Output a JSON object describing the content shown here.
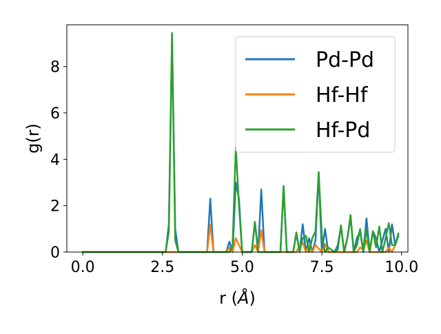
{
  "chart_data": {
    "type": "line",
    "xlabel_prefix": "r (",
    "xlabel_unit": "Å",
    "xlabel_suffix": ")",
    "ylabel": "g(r)",
    "xlim": [
      -0.5,
      10.2
    ],
    "ylim": [
      0,
      9.8
    ],
    "x_ticks": [
      0.0,
      2.5,
      5.0,
      7.5,
      10.0
    ],
    "x_tick_labels": [
      "0.0",
      "2.5",
      "5.0",
      "7.5",
      "10.0"
    ],
    "y_ticks": [
      0,
      2,
      4,
      6,
      8
    ],
    "y_tick_labels": [
      "0",
      "2",
      "4",
      "6",
      "8"
    ],
    "grid": false,
    "legend_position": "top-right",
    "series": [
      {
        "name": "Pd-Pd",
        "color": "#1f77b4",
        "x": [
          0.0,
          2.6,
          2.7,
          2.8,
          2.9,
          3.0,
          3.9,
          4.0,
          4.1,
          4.5,
          4.6,
          4.7,
          4.8,
          4.9,
          5.0,
          5.3,
          5.4,
          5.5,
          5.6,
          5.7,
          6.2,
          6.3,
          6.4,
          6.6,
          6.7,
          6.8,
          6.9,
          7.0,
          7.1,
          7.2,
          7.3,
          7.4,
          7.5,
          7.6,
          7.7,
          7.9,
          8.0,
          8.1,
          8.2,
          8.3,
          8.4,
          8.5,
          8.6,
          8.7,
          8.8,
          8.9,
          9.0,
          9.1,
          9.2,
          9.3,
          9.4,
          9.5,
          9.6,
          9.7,
          9.8,
          9.9
        ],
        "y": [
          0,
          0,
          1.2,
          9.2,
          1.0,
          0,
          0,
          2.3,
          0,
          0,
          0.45,
          0,
          3.0,
          2.3,
          0,
          0,
          1.3,
          0,
          2.7,
          0,
          0,
          2.8,
          0,
          0,
          0.8,
          0,
          1.2,
          0,
          0.6,
          0,
          0.5,
          3.4,
          0,
          1.0,
          0,
          0,
          0.3,
          1.1,
          0,
          0.6,
          1.5,
          0,
          0.6,
          0.9,
          0,
          1.45,
          0,
          0.9,
          0.6,
          0,
          0.5,
          1.0,
          0,
          1.2,
          0.3,
          0.7
        ]
      },
      {
        "name": "Hf-Hf",
        "color": "#ff7f0e",
        "x": [
          0.0,
          3.9,
          4.0,
          4.1,
          4.5,
          4.6,
          4.7,
          4.8,
          4.9,
          5.0,
          5.3,
          5.4,
          5.5,
          5.6,
          5.7,
          6.7,
          6.8,
          6.9,
          7.0,
          7.1,
          7.2,
          7.3,
          7.4,
          7.5,
          7.6,
          7.7,
          8.6,
          8.7,
          8.8,
          8.9,
          9.0,
          9.5,
          9.6,
          9.7,
          9.8
        ],
        "y": [
          0,
          0,
          1.2,
          0,
          0,
          0.2,
          0,
          0.6,
          0.3,
          0,
          0,
          0.3,
          0,
          0.95,
          0,
          0,
          0.3,
          0.4,
          0,
          0.3,
          0,
          0.3,
          0.15,
          0,
          0.35,
          0,
          0,
          0.2,
          0.1,
          0.5,
          0,
          0,
          0.2,
          0,
          0.3
        ]
      },
      {
        "name": "Hf-Pd",
        "color": "#2ca02c",
        "x": [
          0.0,
          2.6,
          2.7,
          2.8,
          2.9,
          3.0,
          4.6,
          4.7,
          4.8,
          4.9,
          5.0,
          5.3,
          5.4,
          5.5,
          6.2,
          6.3,
          6.4,
          6.6,
          6.7,
          6.8,
          6.9,
          7.0,
          7.1,
          7.2,
          7.3,
          7.4,
          7.5,
          7.6,
          7.7,
          7.9,
          8.0,
          8.1,
          8.2,
          8.3,
          8.4,
          8.5,
          8.6,
          8.7,
          8.8,
          8.9,
          9.0,
          9.1,
          9.2,
          9.3,
          9.4,
          9.5,
          9.6,
          9.7,
          9.8,
          9.9
        ],
        "y": [
          0,
          0,
          0.9,
          9.45,
          0.5,
          0,
          0,
          0.3,
          4.5,
          2.0,
          0,
          0,
          1.3,
          0,
          0,
          2.85,
          0,
          0,
          0.85,
          0,
          0.6,
          0.7,
          0,
          0.6,
          0.9,
          3.45,
          0.7,
          0,
          0.2,
          0,
          0.1,
          1.15,
          0,
          0.6,
          1.6,
          0,
          0.3,
          1.0,
          0,
          0.95,
          0,
          0.9,
          0.2,
          1.1,
          0,
          0.6,
          1.25,
          0.3,
          0.3,
          0.8
        ]
      }
    ]
  }
}
